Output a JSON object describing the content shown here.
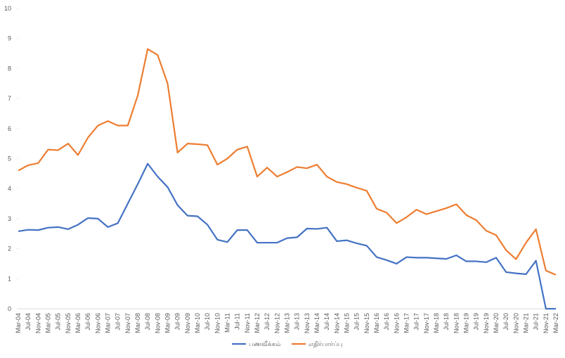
{
  "chart_data": {
    "type": "line",
    "categories": [
      "Mar-04",
      "Jul-04",
      "Nov-04",
      "Mar-05",
      "Jul-05",
      "Nov-05",
      "Mar-06",
      "Jul-06",
      "Nov-06",
      "Mar-07",
      "Jul-07",
      "Nov-07",
      "Mar-08",
      "Jul-08",
      "Nov-08",
      "Mar-09",
      "Jul-09",
      "Nov-09",
      "Mar-10",
      "Jul-10",
      "Nov-10",
      "Mar-11",
      "Jul-11",
      "Nov-11",
      "Mar-12",
      "Jul-12",
      "Nov-12",
      "Mar-13",
      "Jul-13",
      "Nov-13",
      "Mar-14",
      "Jul-14",
      "Nov-14",
      "Mar-15",
      "Jul-15",
      "Nov-15",
      "Mar-16",
      "Jul-16",
      "Nov-16",
      "Mar-17",
      "Jul-17",
      "Nov-17",
      "Mar-18",
      "Jul-18",
      "Nov-18",
      "Mar-19",
      "Jul-19",
      "Nov-19",
      "Mar-20",
      "Jul-20",
      "Nov-20",
      "Mar-21",
      "Jul-21",
      "Nov-21",
      "Mar-22"
    ],
    "series": [
      {
        "name": "பணவீக்கம்",
        "color": "#4472c4",
        "values": [
          2.58,
          2.63,
          2.62,
          2.7,
          2.72,
          2.65,
          2.8,
          3.02,
          3.0,
          2.72,
          2.85,
          3.5,
          4.15,
          4.83,
          4.4,
          4.05,
          3.45,
          3.1,
          3.08,
          2.8,
          2.3,
          2.22,
          2.62,
          2.62,
          2.2,
          2.2,
          2.2,
          2.35,
          2.38,
          2.67,
          2.66,
          2.7,
          2.25,
          2.28,
          2.18,
          2.1,
          1.72,
          1.62,
          1.5,
          1.72,
          1.7,
          1.7,
          1.68,
          1.66,
          1.78,
          1.58,
          1.58,
          1.55,
          1.7,
          1.22,
          1.18,
          1.15,
          1.6,
          0,
          0
        ]
      },
      {
        "name": "எதிர்பார்ப்பு",
        "color": "#ed7d31",
        "values": [
          4.6,
          4.78,
          4.85,
          5.3,
          5.28,
          5.5,
          5.12,
          5.7,
          6.1,
          6.25,
          6.1,
          6.1,
          7.1,
          8.65,
          8.45,
          7.5,
          5.2,
          5.5,
          5.48,
          5.45,
          4.8,
          5.0,
          5.3,
          5.4,
          4.4,
          4.7,
          4.4,
          4.55,
          4.72,
          4.68,
          4.8,
          4.4,
          4.22,
          4.15,
          4.03,
          3.93,
          3.33,
          3.2,
          2.85,
          3.05,
          3.3,
          3.15,
          3.25,
          3.35,
          3.48,
          3.12,
          2.95,
          2.6,
          2.45,
          1.95,
          1.65,
          2.2,
          2.65,
          1.27,
          1.13
        ]
      }
    ],
    "ylim": [
      0,
      10
    ],
    "yticks": [
      0,
      1,
      2,
      3,
      4,
      5,
      6,
      7,
      8,
      9,
      10
    ],
    "legend": "bottom"
  }
}
